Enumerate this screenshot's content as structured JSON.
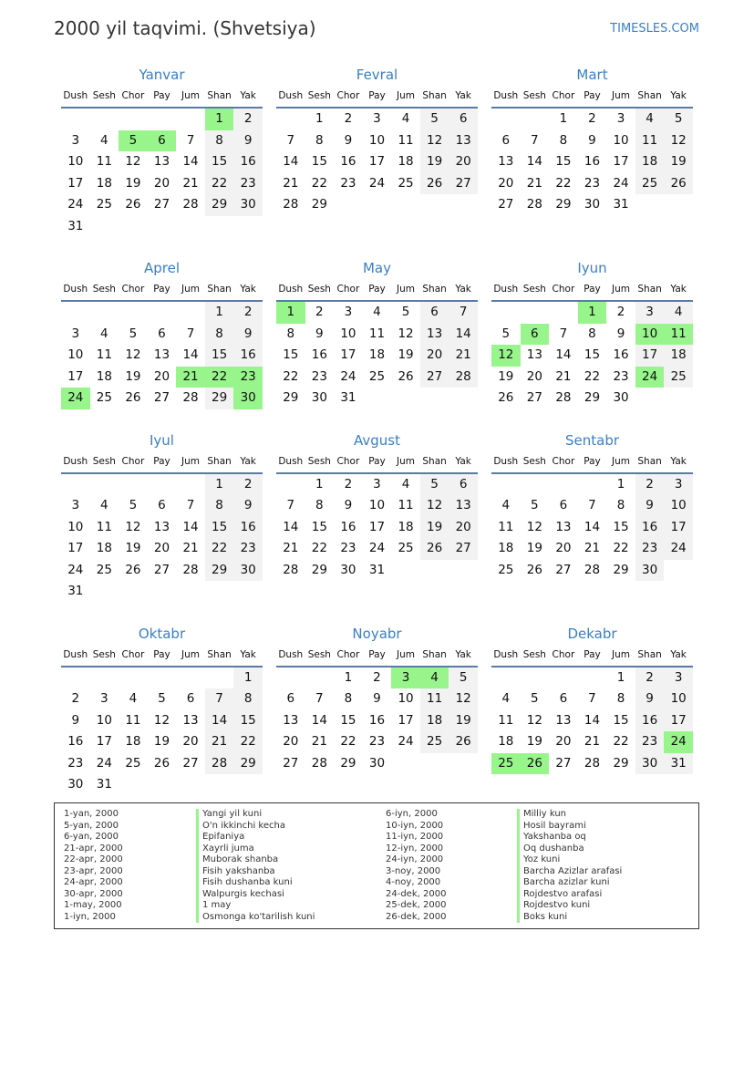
{
  "header": {
    "title": "2000 yil taqvimi. (Shvetsiya)",
    "brand": "TIMESLES.COM"
  },
  "year": 2000,
  "colors": {
    "accent": "#3a7fc4",
    "holiday": "#98f58c",
    "weekend": "#f2f2f2"
  },
  "weekdays": [
    "Dush",
    "Sesh",
    "Chor",
    "Pay",
    "Jum",
    "Shan",
    "Yak"
  ],
  "months": [
    {
      "name": "Yanvar",
      "holidays": [
        1,
        5,
        6
      ]
    },
    {
      "name": "Fevral",
      "holidays": []
    },
    {
      "name": "Mart",
      "holidays": []
    },
    {
      "name": "Aprel",
      "holidays": [
        21,
        22,
        23,
        24,
        30
      ]
    },
    {
      "name": "May",
      "holidays": [
        1
      ]
    },
    {
      "name": "Iyun",
      "holidays": [
        1,
        6,
        10,
        11,
        12,
        24
      ]
    },
    {
      "name": "Iyul",
      "holidays": []
    },
    {
      "name": "Avgust",
      "holidays": []
    },
    {
      "name": "Sentabr",
      "holidays": []
    },
    {
      "name": "Oktabr",
      "holidays": []
    },
    {
      "name": "Noyabr",
      "holidays": [
        3,
        4
      ]
    },
    {
      "name": "Dekabr",
      "holidays": [
        24,
        25,
        26
      ]
    }
  ],
  "legend": [
    [
      {
        "date": "1-yan, 2000",
        "name": "Yangi yil kuni"
      },
      {
        "date": "5-yan, 2000",
        "name": "O'n ikkinchi kecha"
      },
      {
        "date": "6-yan, 2000",
        "name": "Epifaniya"
      },
      {
        "date": "21-apr, 2000",
        "name": "Xayrli juma"
      },
      {
        "date": "22-apr, 2000",
        "name": "Muborak shanba"
      },
      {
        "date": "23-apr, 2000",
        "name": "Fisih yakshanba"
      },
      {
        "date": "24-apr, 2000",
        "name": "Fisih dushanba kuni"
      },
      {
        "date": "30-apr, 2000",
        "name": "Walpurgis kechasi"
      },
      {
        "date": "1-may, 2000",
        "name": "1 may"
      },
      {
        "date": "1-iyn, 2000",
        "name": "Osmonga ko'tarilish kuni"
      }
    ],
    [
      {
        "date": "6-iyn, 2000",
        "name": "Milliy kun"
      },
      {
        "date": "10-iyn, 2000",
        "name": "Hosil bayrami"
      },
      {
        "date": "11-iyn, 2000",
        "name": "Yakshanba oq"
      },
      {
        "date": "12-iyn, 2000",
        "name": "Oq dushanba"
      },
      {
        "date": "24-iyn, 2000",
        "name": "Yoz kuni"
      },
      {
        "date": "3-noy, 2000",
        "name": "Barcha Azizlar arafasi"
      },
      {
        "date": "4-noy, 2000",
        "name": "Barcha azizlar kuni"
      },
      {
        "date": "24-dek, 2000",
        "name": "Rojdestvo arafasi"
      },
      {
        "date": "25-dek, 2000",
        "name": "Rojdestvo kuni"
      },
      {
        "date": "26-dek, 2000",
        "name": "Boks kuni"
      }
    ]
  ]
}
